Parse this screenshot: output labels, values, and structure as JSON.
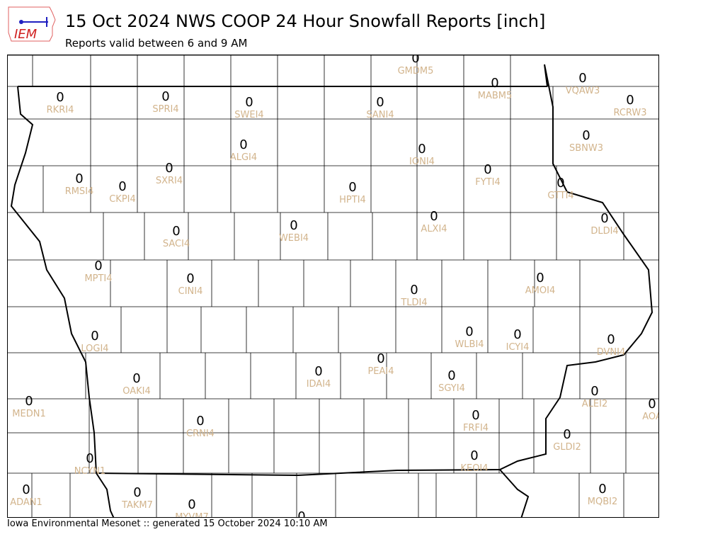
{
  "header": {
    "logo_text": "IEM",
    "title": "15 Oct 2024 NWS COOP 24 Hour Snowfall Reports [inch]",
    "subtitle": "Reports valid between 6 and 9 AM"
  },
  "footer": {
    "text": "Iowa Environmental Mesonet :: generated 15 October 2024 10:10 AM"
  },
  "colors": {
    "value": "#000000",
    "station_label": "#d2b48c",
    "county_line": "#000000",
    "state_line": "#000000"
  },
  "stations": [
    {
      "id": "GMDM5",
      "value": "0"
    },
    {
      "id": "MABM5",
      "value": "0"
    },
    {
      "id": "VQAW3",
      "value": "0"
    },
    {
      "id": "RKRI4",
      "value": "0"
    },
    {
      "id": "SPRI4",
      "value": "0"
    },
    {
      "id": "SWEI4",
      "value": "0"
    },
    {
      "id": "SANI4",
      "value": "0"
    },
    {
      "id": "RCRW3",
      "value": "0"
    },
    {
      "id": "SBNW3",
      "value": "0"
    },
    {
      "id": "ALGI4",
      "value": "0"
    },
    {
      "id": "IONI4",
      "value": "0"
    },
    {
      "id": "FYTI4",
      "value": "0"
    },
    {
      "id": "RMSI4",
      "value": "0"
    },
    {
      "id": "CKPI4",
      "value": "0"
    },
    {
      "id": "SXRI4",
      "value": "0"
    },
    {
      "id": "HPTI4",
      "value": "0"
    },
    {
      "id": "GTTI4",
      "value": "0"
    },
    {
      "id": "DLDI4",
      "value": "0"
    },
    {
      "id": "ALXI4",
      "value": "0"
    },
    {
      "id": "WEBI4",
      "value": "0"
    },
    {
      "id": "SACI4",
      "value": "0"
    },
    {
      "id": "MPTI4",
      "value": "0"
    },
    {
      "id": "CINI4",
      "value": "0"
    },
    {
      "id": "TLDI4",
      "value": "0"
    },
    {
      "id": "AMOI4",
      "value": "0"
    },
    {
      "id": "WLBI4",
      "value": "0"
    },
    {
      "id": "ICYI4",
      "value": "0"
    },
    {
      "id": "LOGI4",
      "value": "0"
    },
    {
      "id": "DVNI4",
      "value": "0"
    },
    {
      "id": "PEAI4",
      "value": "0"
    },
    {
      "id": "IDAI4",
      "value": "0"
    },
    {
      "id": "SGYI4",
      "value": "0"
    },
    {
      "id": "OAKI4",
      "value": "0"
    },
    {
      "id": "ALEI2",
      "value": "0"
    },
    {
      "id": "AOA",
      "value": "0"
    },
    {
      "id": "MEDN1",
      "value": "0"
    },
    {
      "id": "FRFI4",
      "value": "0"
    },
    {
      "id": "CRNI4",
      "value": "0"
    },
    {
      "id": "GLDI2",
      "value": "0"
    },
    {
      "id": "KEOI4",
      "value": "0"
    },
    {
      "id": "NCYN1",
      "value": "0"
    },
    {
      "id": "ADAN1",
      "value": "0"
    },
    {
      "id": "TAKM7",
      "value": "0"
    },
    {
      "id": "MQBI2",
      "value": "0"
    },
    {
      "id": "MYVM7",
      "value": "0"
    },
    {
      "id": "",
      "value": "0"
    }
  ]
}
